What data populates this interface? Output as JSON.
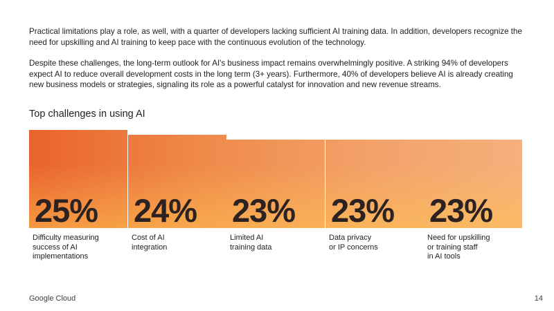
{
  "paragraphs": {
    "p1": "Practical limitations play a role, as well, with a quarter of developers lacking sufficient AI training data. In addition, developers recognize the need for upskilling and AI training to keep pace with the continuous evolution of the technology.",
    "p2": "Despite these challenges, the long-term outlook for AI's business impact remains overwhelmingly positive. A striking 94% of developers expect AI to reduce overall development costs in the long term (3+ years). Furthermore, 40% of developers believe AI is already creating new business models or strategies, signaling its role as a powerful catalyst for innovation and new revenue streams."
  },
  "section_title": "Top challenges in using AI",
  "chart_data": {
    "type": "bar",
    "title": "Top challenges in using AI",
    "categories": [
      "Difficulty measuring success of AI implementations",
      "Cost of AI integration",
      "Limited AI training data",
      "Data privacy or IP concerns",
      "Need for upskilling or training staff in AI tools"
    ],
    "values": [
      25,
      24,
      23,
      23,
      23
    ],
    "value_labels": [
      "25%",
      "24%",
      "23%",
      "23%",
      "23%"
    ],
    "category_labels": [
      "Difficulty measuring\nsuccess of AI\nimplementations",
      "Cost of AI\nintegration",
      "Limited AI\ntraining data",
      "Data privacy\nor IP concerns",
      "Need for upskilling\nor training staff\nin AI tools"
    ],
    "unit": "%",
    "colors": [
      "#e9632d",
      "#f5b07c",
      "#fbc86a"
    ]
  },
  "footer": {
    "brand": "Google Cloud",
    "page": "14"
  }
}
